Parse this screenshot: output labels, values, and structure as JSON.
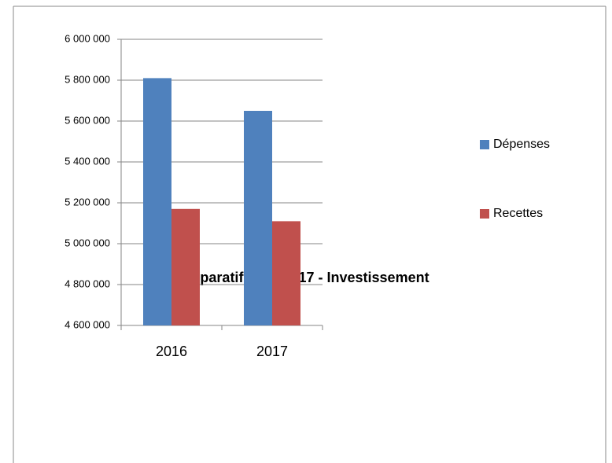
{
  "chart_data": {
    "type": "bar",
    "title": "Comparatif 2016/2017 - Investissement",
    "categories": [
      "2016",
      "2017"
    ],
    "series": [
      {
        "name": "Dépenses",
        "color": "#4f81bd",
        "values": [
          5810000,
          5650000
        ]
      },
      {
        "name": "Recettes",
        "color": "#c0504d",
        "values": [
          5170000,
          5110000
        ]
      }
    ],
    "ylim": [
      4600000,
      6000000
    ],
    "yticks": [
      {
        "value": 4600000,
        "label": "4 600 000"
      },
      {
        "value": 4800000,
        "label": "4 800 000"
      },
      {
        "value": 5000000,
        "label": "5 000 000"
      },
      {
        "value": 5200000,
        "label": "5 200 000"
      },
      {
        "value": 5400000,
        "label": "5 400 000"
      },
      {
        "value": 5600000,
        "label": "5 600 000"
      },
      {
        "value": 5800000,
        "label": "5 800 000"
      },
      {
        "value": 6000000,
        "label": "6 000 000"
      }
    ],
    "grid": true,
    "legend": "right"
  }
}
